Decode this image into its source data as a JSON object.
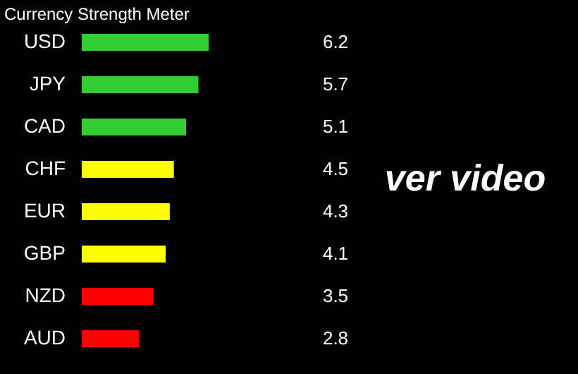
{
  "chart_data": {
    "type": "bar",
    "orientation": "horizontal",
    "title": "Currency Strength Meter",
    "categories": [
      "USD",
      "JPY",
      "CAD",
      "CHF",
      "EUR",
      "GBP",
      "NZD",
      "AUD"
    ],
    "values": [
      6.2,
      5.7,
      5.1,
      4.5,
      4.3,
      4.1,
      3.5,
      2.8
    ],
    "colors": [
      "#33cc33",
      "#33cc33",
      "#33cc33",
      "#ffff00",
      "#ffff00",
      "#ffff00",
      "#ff0000",
      "#ff0000"
    ],
    "data_labels": true,
    "annotations": [
      "ver video"
    ]
  }
}
